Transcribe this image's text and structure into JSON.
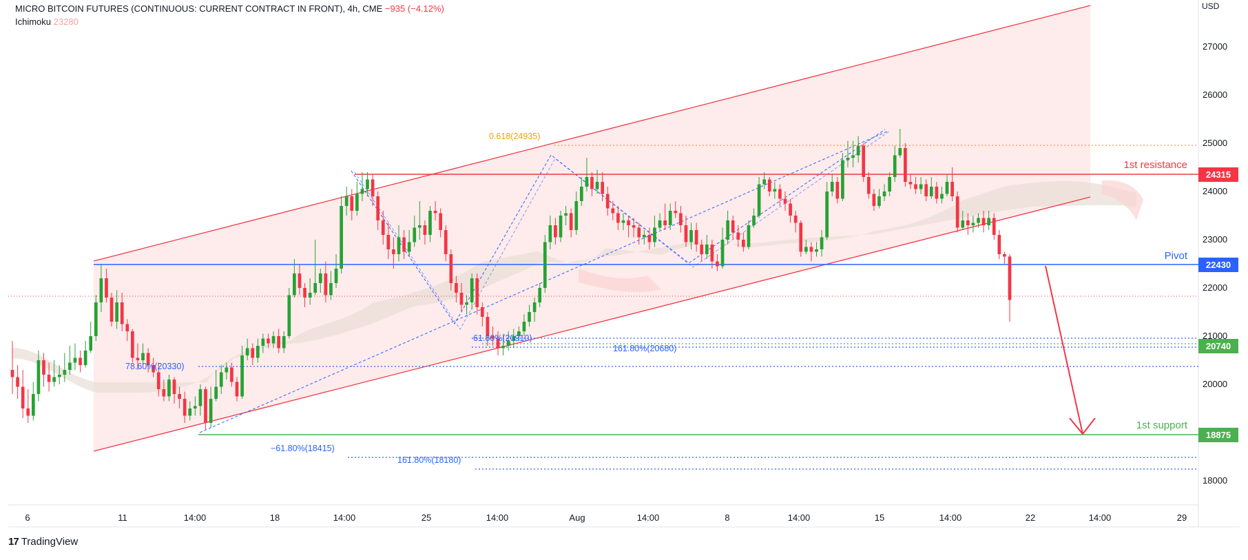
{
  "header": {
    "title": "MICRO BITCOIN FUTURES (CONTINUOUS: CURRENT CONTRACT IN FRONT), 4h, CME",
    "change": "−935 (−4.12%)",
    "indicator_name": "Ichimoku",
    "indicator_value": "23280"
  },
  "currency": "USD",
  "branding": "TradingView",
  "colors": {
    "up": "#089981",
    "down": "#f23645",
    "candle_up": "#26a234",
    "candle_down": "#f23645",
    "resistance": "#f23645",
    "pivot": "#2962ff",
    "support": "#4caf50",
    "fib_blue": "#2962ff",
    "fib_orange": "#f0a30a",
    "channel_fill": "#fde4e4",
    "cloud_fill": "#eadfd8"
  },
  "chart_data": {
    "type": "candlestick",
    "ylim": [
      17200,
      28000
    ],
    "y_ticks": [
      18000,
      20000,
      21000,
      22000,
      23000,
      24000,
      25000,
      26000,
      27000
    ],
    "x_ticks": [
      "6",
      "11",
      "14:00",
      "18",
      "14:00",
      "25",
      "14:00",
      "Aug",
      "14:00",
      "8",
      "14:00",
      "15",
      "14:00",
      "22",
      "14:00",
      "29"
    ],
    "levels": [
      {
        "name": "1st resistance",
        "value": 24315,
        "label": "24315"
      },
      {
        "name": "Pivot",
        "value": 22430,
        "label": "22430"
      },
      {
        "name": "1st support",
        "value": 18875,
        "label": "18875"
      },
      {
        "name": "",
        "value": 20740,
        "label": "20740"
      }
    ],
    "annotations": [
      {
        "text": "0.618(24935)",
        "value": 24935
      },
      {
        "text": "61.80%(20910)",
        "value": 20910
      },
      {
        "text": "161.80%(20680)",
        "value": 20680
      },
      {
        "text": "78.60%(20330)",
        "value": 20330
      },
      {
        "text": "−61.80%(18415)",
        "value": 18415
      },
      {
        "text": "161.80%(18180)",
        "value": 18180
      }
    ],
    "last_price": 21750,
    "candles": [
      [
        20300,
        20150,
        20900,
        19800
      ],
      [
        20150,
        19950,
        20400,
        19700
      ],
      [
        19950,
        19500,
        20300,
        19300
      ],
      [
        19500,
        19350,
        19900,
        19200
      ],
      [
        19350,
        19800,
        20050,
        19250
      ],
      [
        19800,
        20500,
        20700,
        19650
      ],
      [
        20500,
        20200,
        20650,
        19950
      ],
      [
        20200,
        20050,
        20450,
        19850
      ],
      [
        20050,
        20150,
        20500,
        19950
      ],
      [
        20150,
        20200,
        20400,
        20000
      ],
      [
        20200,
        20300,
        20650,
        20050
      ],
      [
        20300,
        20450,
        20800,
        20200
      ],
      [
        20450,
        20550,
        20850,
        20300
      ],
      [
        20550,
        20400,
        20700,
        20250
      ],
      [
        20400,
        20700,
        20900,
        20350
      ],
      [
        20700,
        21000,
        21300,
        20650
      ],
      [
        21000,
        21700,
        21850,
        20900
      ],
      [
        21700,
        22200,
        22500,
        21500
      ],
      [
        22200,
        21800,
        22400,
        21700
      ],
      [
        21800,
        21300,
        21900,
        21200
      ],
      [
        21300,
        21700,
        21950,
        21150
      ],
      [
        21700,
        21250,
        21900,
        21100
      ],
      [
        21250,
        21100,
        21350,
        20900
      ],
      [
        21100,
        20550,
        21150,
        20450
      ],
      [
        20550,
        20500,
        20850,
        20300
      ],
      [
        20500,
        20650,
        20850,
        20350
      ],
      [
        20650,
        20400,
        20750,
        20250
      ],
      [
        20400,
        20250,
        20550,
        20150
      ],
      [
        20250,
        19900,
        20450,
        19750
      ],
      [
        19900,
        19750,
        20100,
        19650
      ],
      [
        19750,
        20100,
        20200,
        19650
      ],
      [
        20100,
        19800,
        20150,
        19600
      ],
      [
        19800,
        19700,
        19950,
        19500
      ],
      [
        19700,
        19350,
        19850,
        19200
      ],
      [
        19350,
        19500,
        19650,
        19250
      ],
      [
        19500,
        19550,
        19750,
        19350
      ],
      [
        19550,
        19900,
        20000,
        19350
      ],
      [
        19900,
        19200,
        19950,
        19050
      ],
      [
        19200,
        19700,
        19950,
        19100
      ],
      [
        19700,
        19950,
        20300,
        19650
      ],
      [
        19950,
        20250,
        20400,
        19800
      ],
      [
        20250,
        20350,
        20450,
        20100
      ],
      [
        20350,
        20050,
        20450,
        19950
      ],
      [
        20050,
        19750,
        20150,
        19650
      ],
      [
        19750,
        20600,
        20800,
        19700
      ],
      [
        20600,
        20750,
        20950,
        20500
      ],
      [
        20750,
        20550,
        20850,
        20400
      ],
      [
        20550,
        20800,
        20950,
        20450
      ],
      [
        20800,
        20950,
        21050,
        20650
      ],
      [
        20950,
        20850,
        21050,
        20750
      ],
      [
        20850,
        21000,
        21100,
        20750
      ],
      [
        21000,
        20750,
        21150,
        20650
      ],
      [
        20750,
        21000,
        21100,
        20650
      ],
      [
        21000,
        21850,
        22000,
        20950
      ],
      [
        21850,
        22300,
        22600,
        21800
      ],
      [
        22300,
        22000,
        22500,
        21850
      ],
      [
        22000,
        21800,
        22100,
        21600
      ],
      [
        21800,
        21900,
        22200,
        21650
      ],
      [
        21900,
        22100,
        23000,
        21850
      ],
      [
        22100,
        22300,
        22400,
        21900
      ],
      [
        22300,
        21850,
        22550,
        21700
      ],
      [
        21850,
        22100,
        22350,
        21750
      ],
      [
        22100,
        22400,
        22700,
        22000
      ],
      [
        22400,
        23700,
        23900,
        22300
      ],
      [
        23700,
        23900,
        24100,
        23500
      ],
      [
        23900,
        23600,
        24050,
        23400
      ],
      [
        23600,
        23950,
        24200,
        23500
      ],
      [
        23950,
        24050,
        24400,
        23800
      ],
      [
        24050,
        24250,
        24400,
        23900
      ],
      [
        24250,
        23900,
        24350,
        23700
      ],
      [
        23900,
        23400,
        24000,
        23200
      ],
      [
        23400,
        23100,
        23600,
        22900
      ],
      [
        23100,
        22800,
        23350,
        22600
      ],
      [
        22800,
        22700,
        23050,
        22400
      ],
      [
        22700,
        23050,
        23300,
        22550
      ],
      [
        23050,
        22750,
        23200,
        22600
      ],
      [
        22750,
        22950,
        23200,
        22650
      ],
      [
        22950,
        23250,
        23500,
        22850
      ],
      [
        23250,
        23300,
        23800,
        23000
      ],
      [
        23300,
        23100,
        23400,
        22900
      ],
      [
        23100,
        23600,
        23700,
        22950
      ],
      [
        23600,
        23550,
        23800,
        23400
      ],
      [
        23550,
        23200,
        23650,
        23050
      ],
      [
        23200,
        22700,
        23300,
        22550
      ],
      [
        22700,
        22100,
        22800,
        21950
      ],
      [
        22100,
        21900,
        22250,
        21700
      ],
      [
        21900,
        21650,
        22100,
        21500
      ],
      [
        21650,
        21700,
        21850,
        21450
      ],
      [
        21700,
        22200,
        22300,
        21550
      ],
      [
        22200,
        21600,
        22300,
        21450
      ],
      [
        21600,
        21400,
        21700,
        21200
      ],
      [
        21400,
        21000,
        21500,
        20800
      ],
      [
        21000,
        20950,
        21200,
        20800
      ],
      [
        20950,
        20750,
        21100,
        20600
      ],
      [
        20750,
        20800,
        21050,
        20600
      ],
      [
        20800,
        20900,
        21100,
        20700
      ],
      [
        20900,
        21000,
        21150,
        20750
      ],
      [
        21000,
        21100,
        21200,
        20900
      ],
      [
        21100,
        21300,
        21450,
        21000
      ],
      [
        21300,
        21500,
        21650,
        21200
      ],
      [
        21500,
        21700,
        21800,
        21300
      ],
      [
        21700,
        22000,
        22100,
        21600
      ],
      [
        22000,
        22950,
        23100,
        21900
      ],
      [
        22950,
        23300,
        23500,
        22800
      ],
      [
        23300,
        23050,
        23450,
        22900
      ],
      [
        23050,
        23500,
        23600,
        22950
      ],
      [
        23500,
        23550,
        23700,
        23300
      ],
      [
        23550,
        23200,
        23650,
        23050
      ],
      [
        23200,
        23800,
        24000,
        23100
      ],
      [
        23800,
        24100,
        24300,
        23700
      ],
      [
        24100,
        24300,
        24700,
        24000
      ],
      [
        24300,
        24050,
        24400,
        23900
      ],
      [
        24050,
        24200,
        24450,
        23950
      ],
      [
        24200,
        23950,
        24400,
        23800
      ],
      [
        23950,
        23650,
        24100,
        23500
      ],
      [
        23650,
        23550,
        23800,
        23400
      ],
      [
        23550,
        23350,
        23700,
        23200
      ],
      [
        23350,
        23400,
        23550,
        23200
      ],
      [
        23400,
        23300,
        23500,
        23050
      ],
      [
        23300,
        23250,
        23450,
        23050
      ],
      [
        23250,
        23050,
        23350,
        22900
      ],
      [
        23050,
        23100,
        23200,
        22900
      ],
      [
        23100,
        22950,
        23250,
        22800
      ],
      [
        22950,
        23250,
        23500,
        22850
      ],
      [
        23250,
        23400,
        23550,
        23200
      ],
      [
        23400,
        23300,
        23750,
        23200
      ],
      [
        23300,
        23600,
        23750,
        23200
      ],
      [
        23600,
        23550,
        23800,
        23450
      ],
      [
        23550,
        23300,
        23700,
        23150
      ],
      [
        23300,
        22950,
        23500,
        22850
      ],
      [
        22950,
        23200,
        23350,
        22800
      ],
      [
        23200,
        22900,
        23350,
        22750
      ],
      [
        22900,
        22700,
        23000,
        22550
      ],
      [
        22700,
        22900,
        23100,
        22600
      ],
      [
        22900,
        22550,
        23000,
        22400
      ],
      [
        22550,
        22450,
        22700,
        22350
      ],
      [
        22450,
        23000,
        23250,
        22400
      ],
      [
        23000,
        23400,
        23600,
        22900
      ],
      [
        23400,
        23150,
        23500,
        23000
      ],
      [
        23150,
        23000,
        23300,
        22850
      ],
      [
        23000,
        22850,
        23150,
        22750
      ],
      [
        22850,
        23300,
        23400,
        22800
      ],
      [
        23300,
        23500,
        23650,
        23250
      ],
      [
        23500,
        24150,
        24300,
        23450
      ],
      [
        24150,
        24250,
        24400,
        24050
      ],
      [
        24250,
        24000,
        24300,
        23900
      ],
      [
        24000,
        24050,
        24200,
        23850
      ],
      [
        24050,
        23850,
        24150,
        23700
      ],
      [
        23850,
        23750,
        24000,
        23600
      ],
      [
        23750,
        23500,
        23850,
        23350
      ],
      [
        23500,
        23350,
        23600,
        23150
      ],
      [
        23350,
        22750,
        23400,
        22650
      ],
      [
        22750,
        22850,
        23000,
        22700
      ],
      [
        22850,
        22750,
        22950,
        22550
      ],
      [
        22750,
        22800,
        22950,
        22650
      ],
      [
        22800,
        23050,
        23200,
        22650
      ],
      [
        23050,
        24000,
        24200,
        23000
      ],
      [
        24000,
        24200,
        24350,
        23900
      ],
      [
        24200,
        23850,
        24300,
        23750
      ],
      [
        23850,
        24650,
        24800,
        23800
      ],
      [
        24650,
        24700,
        25050,
        24500
      ],
      [
        24700,
        24750,
        25050,
        24500
      ],
      [
        24750,
        24950,
        25150,
        24600
      ],
      [
        24950,
        24300,
        25000,
        24200
      ],
      [
        24300,
        23950,
        24400,
        23850
      ],
      [
        23950,
        23700,
        24050,
        23600
      ],
      [
        23700,
        23900,
        24050,
        23650
      ],
      [
        23900,
        24000,
        24150,
        23800
      ],
      [
        24000,
        24300,
        24400,
        23900
      ],
      [
        24300,
        24750,
        24950,
        24200
      ],
      [
        24750,
        24900,
        25300,
        24700
      ],
      [
        24900,
        24200,
        25000,
        24100
      ],
      [
        24200,
        24150,
        24350,
        24050
      ],
      [
        24150,
        24050,
        24300,
        23950
      ],
      [
        24050,
        24150,
        24300,
        23950
      ],
      [
        24150,
        23900,
        24250,
        23800
      ],
      [
        23900,
        24100,
        24300,
        23850
      ],
      [
        24100,
        23850,
        24200,
        23750
      ],
      [
        23850,
        23950,
        24100,
        23750
      ],
      [
        23950,
        24200,
        24350,
        23900
      ],
      [
        24200,
        23900,
        24500,
        23800
      ],
      [
        23900,
        23250,
        24000,
        23150
      ],
      [
        23250,
        23400,
        23600,
        23200
      ],
      [
        23400,
        23300,
        23550,
        23100
      ],
      [
        23300,
        23350,
        23500,
        23150
      ],
      [
        23350,
        23450,
        23550,
        23250
      ],
      [
        23450,
        23300,
        23600,
        23150
      ],
      [
        23300,
        23450,
        23600,
        23200
      ],
      [
        23450,
        23100,
        23550,
        23000
      ],
      [
        23100,
        22700,
        23200,
        22600
      ],
      [
        22700,
        22650,
        22750,
        22500
      ],
      [
        22650,
        21750,
        22700,
        21300
      ]
    ]
  }
}
